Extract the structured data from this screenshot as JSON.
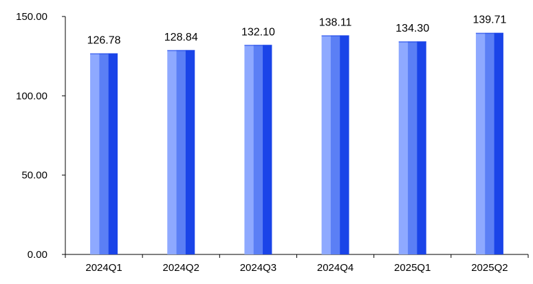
{
  "chart_data": {
    "type": "bar",
    "title": "",
    "xlabel": "",
    "ylabel": "",
    "categories": [
      "2024Q1",
      "2024Q2",
      "2024Q3",
      "2024Q4",
      "2025Q1",
      "2025Q2"
    ],
    "values": [
      126.78,
      128.84,
      132.1,
      138.11,
      134.3,
      139.71
    ],
    "data_labels": [
      "126.78",
      "128.84",
      "132.10",
      "138.11",
      "134.30",
      "139.71"
    ],
    "y_ticks": [
      0,
      50,
      100,
      150
    ],
    "y_tick_labels": [
      "0.00",
      "50.00",
      "100.00",
      "150.00"
    ],
    "ylim": [
      0,
      150
    ],
    "grid": false,
    "legend": "none",
    "colors": {
      "bar_light": "#8ea9ff",
      "bar_mid": "#5b7ff5",
      "bar_dark": "#1a44e8",
      "axis": "#000000",
      "text": "#000000"
    }
  }
}
